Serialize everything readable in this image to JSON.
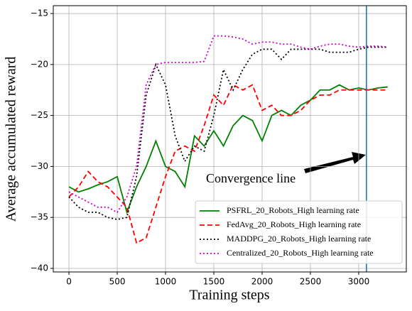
{
  "chart_data": {
    "type": "line",
    "xlabel": "Training steps",
    "ylabel": "Average accumulated reward",
    "x": [
      0,
      100,
      200,
      300,
      400,
      500,
      600,
      700,
      800,
      900,
      1000,
      1100,
      1200,
      1300,
      1400,
      1500,
      1600,
      1700,
      1800,
      1900,
      2000,
      2100,
      2200,
      2300,
      2400,
      2500,
      2600,
      2700,
      2800,
      2900,
      3000,
      3100,
      3200,
      3300
    ],
    "series": [
      {
        "name": "PSFRL_20_Robots_High learning rate",
        "color": "#008000",
        "linestyle": "solid",
        "values": [
          -32,
          -32.5,
          -32.2,
          -31.8,
          -31.5,
          -31,
          -34.5,
          -32,
          -30,
          -27.5,
          -30,
          -30.5,
          -32,
          -27,
          -28,
          -26.5,
          -28,
          -26,
          -25,
          -25.5,
          -27.5,
          -25,
          -24.5,
          -25,
          -24,
          -23.5,
          -22.5,
          -22.5,
          -22,
          -22.5,
          -22.3,
          -22.5,
          -22.3,
          -22.2
        ]
      },
      {
        "name": "FedAvg_20_Robots_High learning rate",
        "color": "#ff0000",
        "linestyle": "dashed",
        "values": [
          -33,
          -32,
          -30.5,
          -31.5,
          -32,
          -33,
          -34,
          -37.5,
          -37,
          -34,
          -31,
          -28.5,
          -28,
          -28.5,
          -26,
          -23,
          -24,
          -22,
          -22.5,
          -22,
          -24.5,
          -24,
          -25,
          -25,
          -24.5,
          -23.5,
          -23,
          -23,
          -22.5,
          -22.5,
          -22.5,
          -22.5,
          -22.5,
          -22.5
        ]
      },
      {
        "name": "MADDPG_20_Robots_High learning rate",
        "color": "#000000",
        "linestyle": "dotted",
        "values": [
          -33,
          -34,
          -34.5,
          -34.5,
          -35,
          -35.2,
          -35,
          -31,
          -23,
          -20,
          -22,
          -27,
          -29.5,
          -28,
          -28.5,
          -25,
          -20.5,
          -22.5,
          -20.5,
          -19,
          -18.5,
          -18.5,
          -19.5,
          -18.5,
          -18.5,
          -18.5,
          -18.5,
          -18.8,
          -18.8,
          -18.8,
          -18.5,
          -18.3,
          -18.3,
          -18.3
        ]
      },
      {
        "name": "Centralized_20_Robots_High learning rate",
        "color": "#cc00cc",
        "linestyle": "dotted",
        "values": [
          -32.5,
          -33,
          -33.5,
          -34,
          -34,
          -34.5,
          -33,
          -30,
          -22,
          -20,
          -19.8,
          -19.8,
          -19.8,
          -19.8,
          -19.7,
          -17.2,
          -17.2,
          -17.3,
          -17.5,
          -18,
          -17.8,
          -17.8,
          -18,
          -18,
          -18.3,
          -18.5,
          -18.2,
          -18,
          -18,
          -18.2,
          -18.3,
          -18.2,
          -18.2,
          -18.3
        ]
      }
    ],
    "xlim": [
      -162,
      3493
    ],
    "ylim": [
      -40.35,
      -14.23
    ],
    "xticks": [
      0,
      500,
      1000,
      1500,
      2000,
      2500,
      3000
    ],
    "yticks": [
      {
        "value": -40,
        "label": "−40"
      },
      {
        "value": -35,
        "label": "−35"
      },
      {
        "value": -30,
        "label": "−30"
      },
      {
        "value": -25,
        "label": "−25"
      },
      {
        "value": -20,
        "label": "−20"
      },
      {
        "value": -15,
        "label": "−15"
      }
    ],
    "grid": true,
    "legend": "lower right",
    "vline": {
      "x": 3080,
      "color": "#1f77b4"
    },
    "annotation": "Convergence line"
  }
}
